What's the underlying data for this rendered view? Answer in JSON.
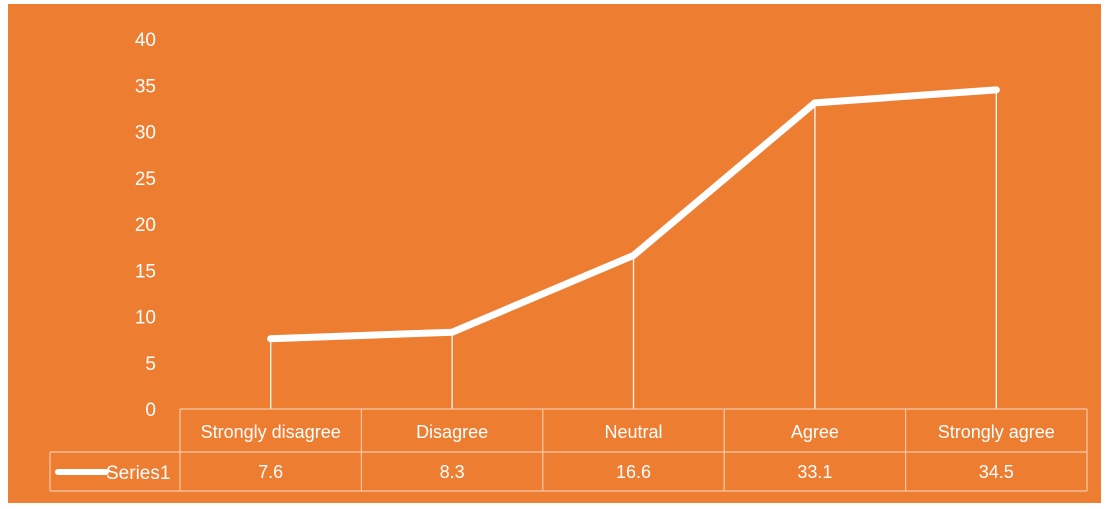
{
  "colors": {
    "background": "#ed7d31",
    "line": "#ffffff"
  },
  "chart_data": {
    "type": "line",
    "categories": [
      "Strongly disagree",
      "Disagree",
      "Neutral",
      "Agree",
      "Strongly agree"
    ],
    "series": [
      {
        "name": "Series1",
        "values": [
          7.6,
          8.3,
          16.6,
          33.1,
          34.5
        ]
      }
    ],
    "ylim": [
      0,
      40
    ],
    "yticks": [
      0,
      5,
      10,
      15,
      20,
      25,
      30,
      35,
      40
    ],
    "grid": false,
    "drop_lines": true,
    "data_table": true,
    "legend": "data-table-left",
    "title": "",
    "xlabel": "",
    "ylabel": ""
  }
}
